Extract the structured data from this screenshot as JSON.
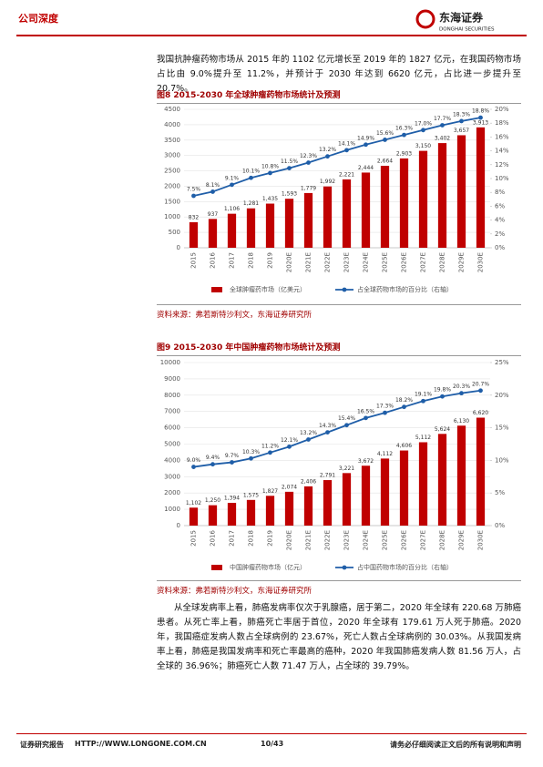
{
  "header": {
    "section": "公司深度",
    "logo_name": "东海证券",
    "logo_en": "DONGHAI SECURITIES"
  },
  "paragraphs": [
    "我国抗肿瘤药物市场从 2015 年的 1102 亿元增长至 2019 年的 1827 亿元，在我国药物市场占比由 9.0%提升至 11.2%，并预计于 2030 年达到 6620 亿元，占比进一步提升至 20.7%。",
    "从全球发病率上看，肺癌发病率仅次于乳腺癌，居于第二，2020 年全球有 220.68 万肺癌患者。从死亡率上看，肺癌死亡率居于首位，2020 年全球有 179.61 万人死于肺癌。2020 年，我国癌症发病人数占全球病例的 23.67%，死亡人数占全球病例的 30.03%。从我国发病率上看，肺癌是我国发病率和死亡率最高的癌种，2020 年我国肺癌发病人数 81.56 万人，占全球的 36.96%；肺癌死亡人数 71.47 万人，占全球的 39.79%。"
  ],
  "chart_data": [
    {
      "type": "combo",
      "title": "图8  2015-2030 年全球肿瘤药物市场统计及预测",
      "source": "资料来源：弗若斯特沙利文，东海证券研究所",
      "grid": true,
      "categories": [
        "2015",
        "2016",
        "2017",
        "2018",
        "2019",
        "2020E",
        "2021E",
        "2022E",
        "2023E",
        "2024E",
        "2025E",
        "2026E",
        "2027E",
        "2028E",
        "2029E",
        "2030E"
      ],
      "ylim": [
        0,
        4500
      ],
      "yticks": [
        0,
        500,
        1000,
        1500,
        2000,
        2500,
        3000,
        3500,
        4000,
        4500
      ],
      "y2lim": [
        0,
        20
      ],
      "y2ticks": [
        {
          "value": 0,
          "label": "0%"
        },
        {
          "value": 2,
          "label": "2%"
        },
        {
          "value": 4,
          "label": "4%"
        },
        {
          "value": 6,
          "label": "6%"
        },
        {
          "value": 8,
          "label": "8%"
        },
        {
          "value": 10,
          "label": "10%"
        },
        {
          "value": 12,
          "label": "12%"
        },
        {
          "value": 14,
          "label": "14%"
        },
        {
          "value": 16,
          "label": "16%"
        },
        {
          "value": 18,
          "label": "18%"
        },
        {
          "value": 20,
          "label": "20%"
        }
      ],
      "series": [
        {
          "name": "全球肿瘤药市场（亿美元）",
          "type": "bar",
          "color": "#c00000",
          "values": [
            832,
            937,
            1106,
            1281,
            1435,
            1593,
            1779,
            1992,
            2221,
            2444,
            2664,
            2903,
            3150,
            3402,
            3657,
            3913
          ],
          "value_labels": [
            "832",
            "937",
            "1,106",
            "1,281",
            "1,435",
            "1,593",
            "1,779",
            "1,992",
            "2,221",
            "2,444",
            "2,664",
            "2,903",
            "3,150",
            "3,402",
            "3,657",
            "3,913"
          ]
        },
        {
          "name": "占全球药物市场的百分比（右轴）",
          "type": "line",
          "axis": "y2",
          "color": "#1f5ea8",
          "values": [
            7.5,
            8.1,
            9.1,
            10.1,
            10.8,
            11.5,
            12.3,
            13.2,
            14.1,
            14.9,
            15.6,
            16.3,
            17.0,
            17.7,
            18.3,
            18.8
          ],
          "value_labels": [
            "7.5%",
            "8.1%",
            "9.1%",
            "10.1%",
            "10.8%",
            "11.5%",
            "12.3%",
            "13.2%",
            "14.1%",
            "14.9%",
            "15.6%",
            "16.3%",
            "17.0%",
            "17.7%",
            "18.3%",
            "18.8%"
          ]
        }
      ]
    },
    {
      "type": "combo",
      "title": "图9  2015-2030 年中国肿瘤药物市场统计及预测",
      "source": "资料来源：弗若斯特沙利文，东海证券研究所",
      "grid": true,
      "categories": [
        "2015",
        "2016",
        "2017",
        "2018",
        "2019",
        "2020E",
        "2021E",
        "2022E",
        "2023E",
        "2024E",
        "2025E",
        "2026E",
        "2027E",
        "2028E",
        "2029E",
        "2030E"
      ],
      "ylim": [
        0,
        10000
      ],
      "yticks": [
        0,
        1000,
        2000,
        3000,
        4000,
        5000,
        6000,
        7000,
        8000,
        9000,
        10000
      ],
      "y2lim": [
        0,
        25
      ],
      "y2ticks": [
        {
          "value": 0,
          "label": "0%"
        },
        {
          "value": 5,
          "label": "5%"
        },
        {
          "value": 10,
          "label": "10%"
        },
        {
          "value": 15,
          "label": "15%"
        },
        {
          "value": 20,
          "label": "20%"
        },
        {
          "value": 25,
          "label": "25%"
        }
      ],
      "series": [
        {
          "name": "中国肿瘤药物市场（亿元）",
          "type": "bar",
          "color": "#c00000",
          "values": [
            1102,
            1250,
            1394,
            1575,
            1827,
            2074,
            2406,
            2791,
            3221,
            3672,
            4112,
            4606,
            5112,
            5624,
            6130,
            6620
          ],
          "value_labels": [
            "1,102",
            "1,250",
            "1,394",
            "1,575",
            "1,827",
            "2,074",
            "2,406",
            "2,791",
            "3,221",
            "3,672",
            "4,112",
            "4,606",
            "5,112",
            "5,624",
            "6,130",
            "6,620"
          ]
        },
        {
          "name": "占中国药物市场的百分比（右轴）",
          "type": "line",
          "axis": "y2",
          "color": "#1f5ea8",
          "values": [
            9.0,
            9.4,
            9.7,
            10.3,
            11.2,
            12.1,
            13.2,
            14.3,
            15.4,
            16.5,
            17.3,
            18.2,
            19.1,
            19.8,
            20.3,
            20.7
          ],
          "value_labels": [
            "9.0%",
            "9.4%",
            "9.7%",
            "10.3%",
            "11.2%",
            "12.1%",
            "13.2%",
            "14.3%",
            "15.4%",
            "16.5%",
            "17.3%",
            "18.2%",
            "19.1%",
            "19.8%",
            "20.3%",
            "20.7%"
          ]
        }
      ]
    }
  ],
  "footer": {
    "left": "证券研究报告",
    "url": "HTTP://WWW.LONGONE.COM.CN",
    "page": "10/43",
    "right": "请务必仔细阅读正文后的所有说明和声明"
  }
}
